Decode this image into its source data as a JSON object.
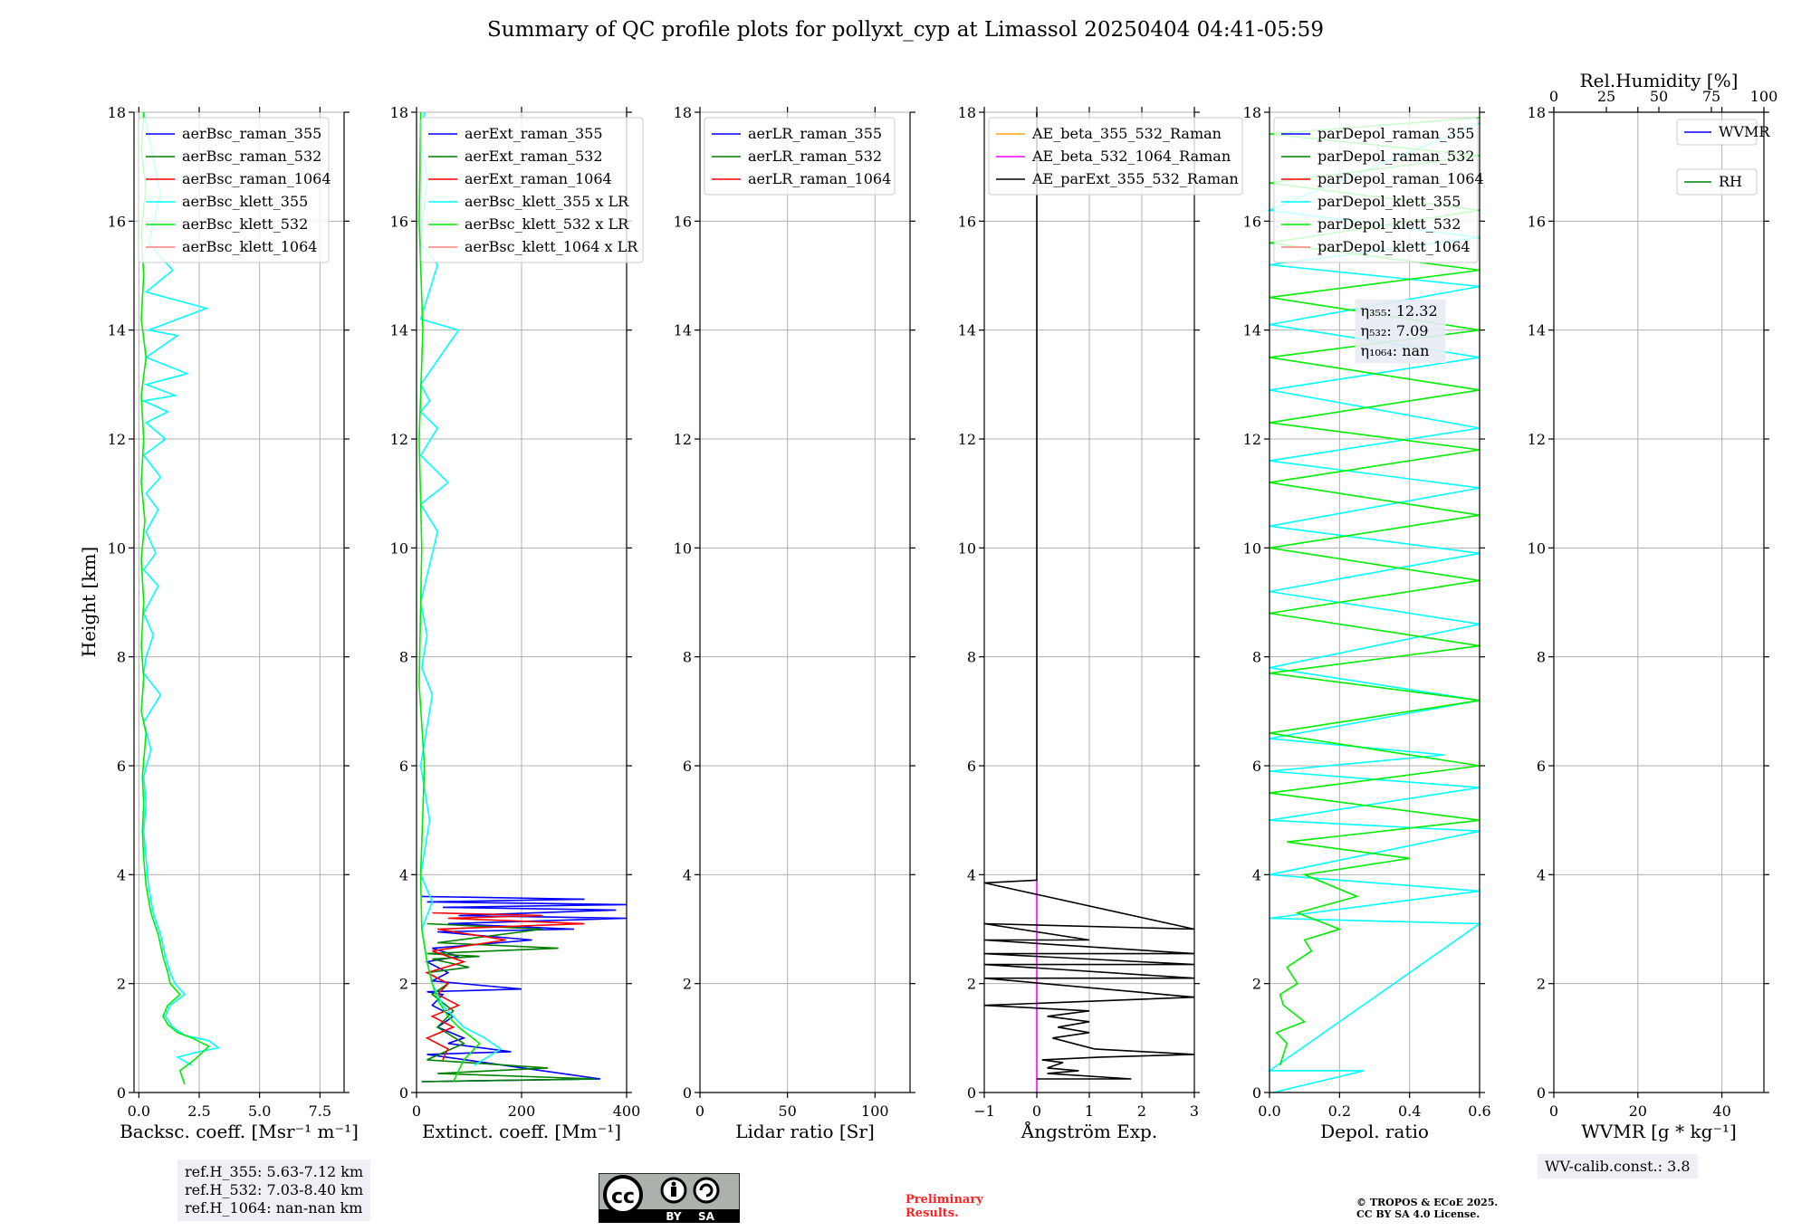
{
  "title": "Summary of QC profile plots for pollyxt_cyp at Limassol 20250404 04:41-05:59",
  "ylabel": "Height [km]",
  "colors": {
    "raman_355": "#0000ff",
    "raman_532": "#008000",
    "raman_1064": "#ff0000",
    "klett_355": "#00ffff",
    "klett_532": "#00ee00",
    "klett_1064": "#ff8080",
    "ae_355_532": "#ffa500",
    "ae_532_1064": "#ff00ff",
    "ae_parext": "#000000"
  },
  "chart_data": [
    {
      "type": "line",
      "id": "bsc",
      "xlabel": "Backsc. coeff. [Msr⁻¹ m⁻¹]",
      "xlim": [
        -0.2,
        8.5
      ],
      "ylim": [
        0,
        18
      ],
      "xticks": [
        0,
        2.5,
        5,
        7.5
      ],
      "xtick_labels": [
        "0.0",
        "2.5",
        "5.0",
        "7.5"
      ],
      "yticks": [
        0,
        2,
        4,
        6,
        8,
        10,
        12,
        14,
        16,
        18
      ],
      "legend": [
        "aerBsc_raman_355",
        "aerBsc_raman_532",
        "aerBsc_raman_1064",
        "aerBsc_klett_355",
        "aerBsc_klett_532",
        "aerBsc_klett_1064"
      ],
      "legend_colors": [
        "raman_355",
        "raman_532",
        "raman_1064",
        "klett_355",
        "klett_532",
        "klett_1064"
      ],
      "series": [
        {
          "name": "aerBsc_klett_355",
          "color": "klett_355",
          "x": [
            2.2,
            1.6,
            2.5,
            3.3,
            2.9,
            1.9,
            1.4,
            1.1,
            1.3,
            1.9,
            1.5,
            1.3,
            1.1,
            0.9,
            0.6,
            0.4,
            0.3,
            0.2,
            0.3,
            0.2,
            0.5,
            0.2,
            0.9,
            0.2,
            0.3,
            0.6,
            0.2,
            0.8,
            0.2,
            0.7,
            0.3,
            0.8,
            0.3,
            0.9,
            0.2,
            1.1,
            0.3,
            1.2,
            0.2,
            1.5,
            0.3,
            2.0,
            0.3,
            1.6,
            0.4,
            2.8,
            0.3,
            1.4,
            0.4,
            0.9,
            0.2
          ],
          "y": [
            0.5,
            0.65,
            0.75,
            0.82,
            0.95,
            1.05,
            1.2,
            1.4,
            1.6,
            1.8,
            2.0,
            2.2,
            2.5,
            2.9,
            3.3,
            3.8,
            4.3,
            4.8,
            5.3,
            5.8,
            6.3,
            6.8,
            7.3,
            7.7,
            8.0,
            8.4,
            8.8,
            9.3,
            9.6,
            9.9,
            10.3,
            10.7,
            11.0,
            11.3,
            11.7,
            12.0,
            12.3,
            12.5,
            12.7,
            12.8,
            13.0,
            13.2,
            13.5,
            13.9,
            14.0,
            14.4,
            14.7,
            15.1,
            15.6,
            16.5,
            18.0
          ]
        },
        {
          "name": "aerBsc_klett_532",
          "color": "klett_532",
          "x": [
            1.9,
            1.7,
            2.3,
            2.9,
            2.2,
            1.6,
            1.2,
            1.0,
            1.2,
            1.7,
            1.3,
            1.2,
            1.0,
            0.8,
            0.5,
            0.3,
            0.2,
            0.15,
            0.2,
            0.15,
            0.3,
            0.1,
            0.2,
            0.1,
            0.2,
            0.1,
            0.25,
            0.1,
            0.2,
            0.1,
            0.3,
            0.1,
            0.2,
            0.1,
            0.3,
            0.1,
            0.2
          ],
          "y": [
            0.15,
            0.4,
            0.6,
            0.85,
            1.0,
            1.1,
            1.25,
            1.4,
            1.6,
            1.8,
            2.0,
            2.2,
            2.5,
            2.9,
            3.3,
            3.8,
            4.3,
            4.8,
            5.3,
            5.8,
            6.6,
            7.0,
            7.6,
            8.2,
            9.0,
            9.8,
            10.5,
            11.2,
            12.0,
            12.8,
            13.5,
            14.2,
            15.0,
            15.8,
            16.6,
            17.3,
            18.0
          ]
        }
      ]
    },
    {
      "type": "line",
      "id": "ext",
      "xlabel": "Extinct. coeff. [Mm⁻¹]",
      "xlim": [
        0,
        400
      ],
      "ylim": [
        0,
        18
      ],
      "xticks": [
        0,
        200,
        400
      ],
      "xtick_labels": [
        "0",
        "200",
        "400"
      ],
      "yticks": [
        0,
        2,
        4,
        6,
        8,
        10,
        12,
        14,
        16,
        18
      ],
      "legend": [
        "aerExt_raman_355",
        "aerExt_raman_532",
        "aerExt_raman_1064",
        "aerBsc_klett_355 x LR",
        "aerBsc_klett_532 x LR",
        "aerBsc_klett_1064 x LR"
      ],
      "legend_colors": [
        "raman_355",
        "raman_532",
        "raman_1064",
        "klett_355",
        "klett_532",
        "klett_1064"
      ],
      "series": [
        {
          "name": "aerExt_raman_355",
          "color": "raman_355",
          "x": [
            10,
            350,
            20,
            180,
            60,
            90,
            40,
            70,
            30,
            50,
            20,
            200,
            30,
            60,
            20,
            80,
            30,
            220,
            40,
            300,
            60,
            400,
            80,
            380,
            50,
            400,
            20,
            320,
            10
          ],
          "y": [
            0.2,
            0.25,
            0.7,
            0.75,
            0.9,
            1.0,
            1.2,
            1.4,
            1.6,
            1.8,
            1.85,
            1.9,
            2.05,
            2.2,
            2.4,
            2.5,
            2.65,
            2.8,
            2.95,
            3.0,
            3.1,
            3.2,
            3.25,
            3.35,
            3.4,
            3.45,
            3.5,
            3.55,
            3.6
          ]
        },
        {
          "name": "aerExt_raman_532",
          "color": "raman_532",
          "x": [
            10,
            340,
            40,
            250,
            20,
            90,
            40,
            70,
            30,
            60,
            20,
            100,
            30,
            120,
            20,
            270,
            40,
            240,
            20
          ],
          "y": [
            0.2,
            0.25,
            0.35,
            0.45,
            0.6,
            0.9,
            1.2,
            1.5,
            1.8,
            2.0,
            2.2,
            2.3,
            2.45,
            2.5,
            2.55,
            2.65,
            2.75,
            3.0,
            3.1
          ]
        },
        {
          "name": "aerExt_raman_1064",
          "color": "raman_1064",
          "x": [
            50,
            60,
            20,
            70,
            30,
            80,
            40,
            60,
            20,
            90,
            30,
            170,
            40,
            320,
            60,
            240,
            30
          ],
          "y": [
            0.6,
            0.8,
            1.0,
            1.2,
            1.4,
            1.6,
            1.8,
            2.0,
            2.2,
            2.4,
            2.6,
            2.8,
            3.0,
            3.1,
            3.2,
            3.25,
            3.3
          ]
        },
        {
          "name": "aerBsc_klett_355 x LR",
          "color": "klett_355",
          "x": [
            110,
            160,
            130,
            90,
            70,
            50,
            40,
            30,
            20,
            10,
            30,
            8,
            25,
            8,
            30,
            10,
            20,
            8,
            40,
            8,
            60,
            8,
            40,
            8,
            25,
            8,
            80,
            8,
            40,
            8,
            20,
            8,
            15
          ],
          "y": [
            0.5,
            0.8,
            1.0,
            1.2,
            1.4,
            1.6,
            1.8,
            2.0,
            2.4,
            3.0,
            3.5,
            4.0,
            5.0,
            6.0,
            7.3,
            7.8,
            8.4,
            9.0,
            10.3,
            10.8,
            11.2,
            11.7,
            12.2,
            12.5,
            12.7,
            13.0,
            14.0,
            14.2,
            15.2,
            15.6,
            16.8,
            17.5,
            18.0
          ]
        },
        {
          "name": "aerBsc_klett_532 x LR",
          "color": "klett_532",
          "x": [
            70,
            90,
            120,
            80,
            60,
            40,
            30,
            20,
            10,
            8,
            15,
            5,
            10,
            5,
            12,
            5,
            8
          ],
          "y": [
            0.2,
            0.6,
            0.9,
            1.2,
            1.4,
            1.7,
            2.0,
            2.4,
            3.0,
            4.0,
            6.0,
            7.5,
            10.0,
            12.0,
            14.0,
            16.0,
            18.0
          ]
        }
      ]
    },
    {
      "type": "line",
      "id": "lr",
      "xlabel": "Lidar ratio [Sr]",
      "xlim": [
        0,
        120
      ],
      "ylim": [
        0,
        18
      ],
      "xticks": [
        0,
        50,
        100
      ],
      "xtick_labels": [
        "0",
        "50",
        "100"
      ],
      "yticks": [
        0,
        2,
        4,
        6,
        8,
        10,
        12,
        14,
        16,
        18
      ],
      "legend": [
        "aerLR_raman_355",
        "aerLR_raman_532",
        "aerLR_raman_1064"
      ],
      "legend_colors": [
        "raman_355",
        "raman_532",
        "raman_1064"
      ],
      "series": []
    },
    {
      "type": "line",
      "id": "ae",
      "xlabel": "Ångström Exp.",
      "xlim": [
        -1,
        3
      ],
      "ylim": [
        0,
        18
      ],
      "xticks": [
        -1,
        0,
        1,
        2,
        3
      ],
      "xtick_labels": [
        "−1",
        "0",
        "1",
        "2",
        "3"
      ],
      "yticks": [
        0,
        2,
        4,
        6,
        8,
        10,
        12,
        14,
        16,
        18
      ],
      "legend": [
        "AE_beta_355_532_Raman",
        "AE_beta_532_1064_Raman",
        "AE_parExt_355_532_Raman"
      ],
      "legend_colors": [
        "ae_355_532",
        "ae_532_1064",
        "ae_parext"
      ],
      "series": [
        {
          "name": "AE_beta_532_1064_Raman",
          "color": "ae_532_1064",
          "x": [
            0,
            0
          ],
          "y": [
            0,
            3.9
          ]
        },
        {
          "name": "AE_parExt_355_532_Raman",
          "color": "ae_parext",
          "x": [
            0,
            1.8,
            0.2,
            0.8,
            0.2,
            0.5,
            0.1,
            1.2,
            3.0,
            1.1,
            0.3,
            1.0,
            0.4,
            1.0,
            0.2,
            1.0,
            -1.0,
            3.0,
            -1.0,
            3.0,
            -1.0,
            3.0,
            -1.0,
            3.0,
            -1.0,
            1.0,
            -1.0,
            3.0,
            -1.0,
            0.0,
            0.0,
            0.0
          ],
          "y": [
            0.25,
            0.25,
            0.35,
            0.4,
            0.45,
            0.55,
            0.6,
            0.65,
            0.7,
            0.8,
            1.0,
            1.1,
            1.2,
            1.3,
            1.4,
            1.5,
            1.6,
            1.75,
            2.1,
            2.1,
            2.35,
            2.35,
            2.55,
            2.55,
            2.8,
            2.8,
            3.1,
            3.0,
            3.85,
            3.9,
            16.0,
            18.0
          ]
        }
      ]
    },
    {
      "type": "line",
      "id": "depol",
      "xlabel": "Depol. ratio",
      "xlim": [
        0,
        0.6
      ],
      "ylim": [
        0,
        18
      ],
      "xticks": [
        0,
        0.2,
        0.4,
        0.6
      ],
      "xtick_labels": [
        "0.0",
        "0.2",
        "0.4",
        "0.6"
      ],
      "yticks": [
        0,
        2,
        4,
        6,
        8,
        10,
        12,
        14,
        16,
        18
      ],
      "legend": [
        "parDepol_raman_355",
        "parDepol_raman_532",
        "parDepol_raman_1064",
        "parDepol_klett_355",
        "parDepol_klett_532",
        "parDepol_klett_1064"
      ],
      "legend_colors": [
        "raman_355",
        "raman_532",
        "raman_1064",
        "klett_355",
        "klett_532",
        "klett_1064"
      ],
      "eta": [
        "η₃₅₅: 12.32",
        "η₅₃₂: 7.09",
        "η₁₀₆₄: nan"
      ],
      "series": [
        {
          "name": "parDepol_klett_355",
          "color": "klett_355",
          "x": [
            0.01,
            0.27,
            0.0,
            0.6,
            0.0,
            0.6,
            0.0,
            0.6,
            0.0,
            0.6,
            0.0,
            0.5,
            0.0,
            0.6,
            0.0,
            0.6,
            0.0,
            0.6,
            0.0,
            0.6,
            0.0,
            0.6,
            0.0,
            0.6,
            0.0,
            0.6,
            0.0,
            0.6,
            0.0,
            0.6
          ],
          "y": [
            0.0,
            0.4,
            0.4,
            3.1,
            3.2,
            3.7,
            4.0,
            4.8,
            5.0,
            5.6,
            5.9,
            6.2,
            6.5,
            7.2,
            7.8,
            8.6,
            9.2,
            9.9,
            10.4,
            11.1,
            11.6,
            12.2,
            12.9,
            13.5,
            14.1,
            14.8,
            15.2,
            15.7,
            16.2,
            17.8
          ]
        },
        {
          "name": "parDepol_klett_532",
          "color": "klett_532",
          "x": [
            0.03,
            0.05,
            0.02,
            0.1,
            0.04,
            0.03,
            0.08,
            0.05,
            0.12,
            0.1,
            0.2,
            0.08,
            0.25,
            0.1,
            0.4,
            0.05,
            0.6,
            0.0,
            0.6,
            0.0,
            0.6,
            0.0,
            0.6,
            0.0,
            0.6,
            0.0,
            0.6,
            0.0,
            0.6,
            0.0,
            0.6,
            0.0,
            0.6,
            0.0,
            0.6,
            0.0,
            0.6,
            0.0,
            0.6,
            0.0,
            0.6
          ],
          "y": [
            0.5,
            0.9,
            1.1,
            1.3,
            1.6,
            1.8,
            2.0,
            2.3,
            2.6,
            2.8,
            3.0,
            3.3,
            3.6,
            4.0,
            4.3,
            4.6,
            5.0,
            5.5,
            6.0,
            6.6,
            7.2,
            7.7,
            8.2,
            8.8,
            9.4,
            10.0,
            10.6,
            11.2,
            11.8,
            12.3,
            12.9,
            13.5,
            14.0,
            14.6,
            15.1,
            15.6,
            16.2,
            16.7,
            17.2,
            17.6,
            17.9
          ]
        }
      ]
    },
    {
      "type": "line",
      "id": "wv",
      "xlabel": "WVMR [g * kg⁻¹]",
      "xlabel_top": "Rel.Humidity [%]",
      "xlim": [
        0,
        50
      ],
      "ylim": [
        0,
        18
      ],
      "xticks": [
        0,
        20,
        40
      ],
      "xtick_labels": [
        "0",
        "20",
        "40"
      ],
      "xticks_top": [
        0,
        25,
        50,
        75,
        100
      ],
      "xtick_top_labels": [
        "0",
        "25",
        "50",
        "75",
        "100"
      ],
      "yticks": [
        0,
        2,
        4,
        6,
        8,
        10,
        12,
        14,
        16,
        18
      ],
      "legend": [
        "WVMR",
        "RH"
      ],
      "legend_colors": [
        "raman_355",
        "raman_532"
      ],
      "series": []
    }
  ],
  "footer": {
    "ref_h_355": "ref.H_355: 5.63-7.12 km",
    "ref_h_532": "ref.H_532: 7.03-8.40 km",
    "ref_h_1064": "ref.H_1064: nan-nan km",
    "wv_calib": "WV-calib.const.: 3.8",
    "prelim_1": "Preliminary",
    "prelim_2": "Results.",
    "copyright_1": "© TROPOS & ECoE 2025.",
    "copyright_2": "CC BY SA 4.0 License.",
    "license_by": "BY",
    "license_sa": "SA",
    "license_cc": "cc"
  }
}
